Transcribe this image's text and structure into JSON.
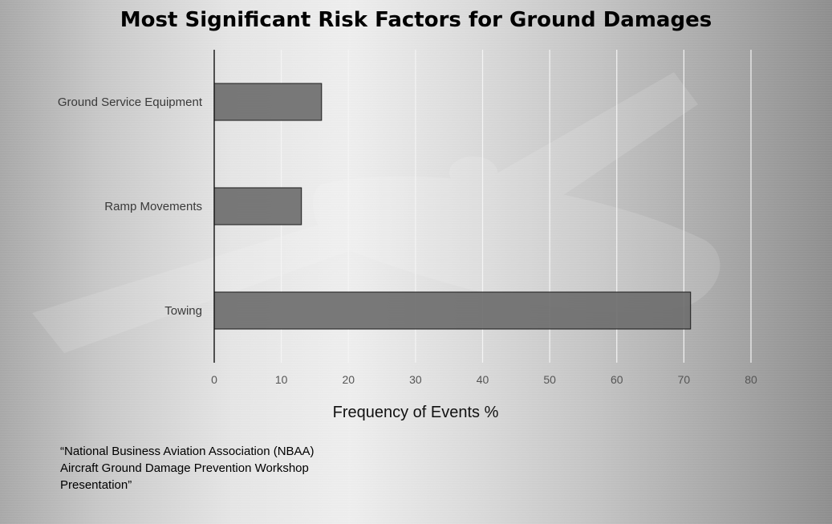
{
  "chart_data": {
    "type": "bar",
    "orientation": "horizontal",
    "title": "Most Significant Risk Factors for Ground Damages",
    "xlabel": "Frequency of Events %",
    "ylabel": "",
    "categories": [
      "Ground Service Equipment",
      "Ramp Movements",
      "Towing"
    ],
    "values": [
      16,
      13,
      71
    ],
    "xlim": [
      0,
      80
    ],
    "ticks": [
      0,
      10,
      20,
      30,
      40,
      50,
      60,
      70,
      80
    ],
    "grid": true,
    "legend": "none",
    "bar_color": "#6e6e6e",
    "bar_border_color": "#1a1a1a",
    "grid_color": "#f4f4f4",
    "axis_color": "#111111"
  },
  "source_note": "“National Business Aviation Association (NBAA) Aircraft Ground Damage Prevention Workshop Presentation”"
}
